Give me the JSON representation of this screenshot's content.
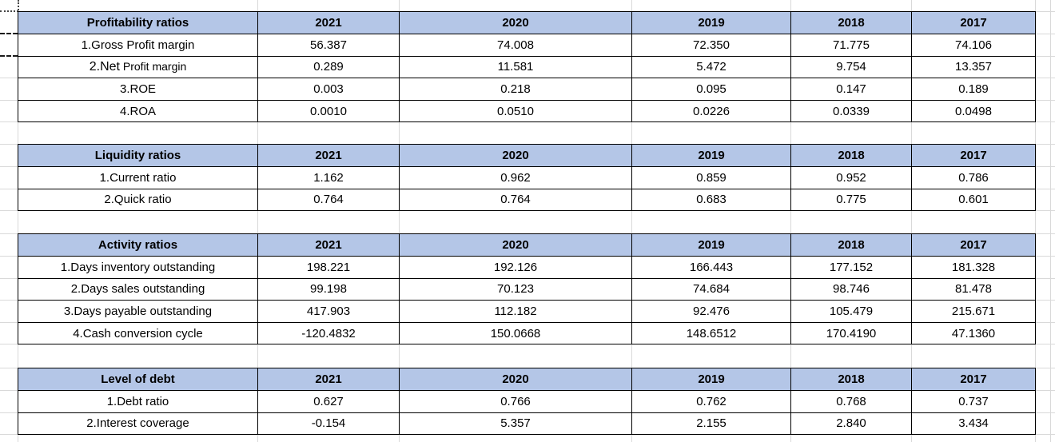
{
  "sheet": {
    "year_headers": [
      "2021",
      "2020",
      "2019",
      "2018",
      "2017"
    ],
    "tables": [
      {
        "title": "Profitability ratios",
        "rows": [
          {
            "label": "1.Gross Profit margin",
            "values": [
              "56.387",
              "74.008",
              "72.350",
              "71.775",
              "74.106"
            ]
          },
          {
            "label": "2.Net Profit margin",
            "label_parts": [
              "2.Net",
              " Profit margin"
            ],
            "values": [
              "0.289",
              "11.581",
              "5.472",
              "9.754",
              "13.357"
            ]
          },
          {
            "label": "3.ROE",
            "values": [
              "0.003",
              "0.218",
              "0.095",
              "0.147",
              "0.189"
            ]
          },
          {
            "label": "4.ROA",
            "values": [
              "0.0010",
              "0.0510",
              "0.0226",
              "0.0339",
              "0.0498"
            ]
          }
        ]
      },
      {
        "title": "Liquidity ratios",
        "rows": [
          {
            "label": "1.Current ratio",
            "values": [
              "1.162",
              "0.962",
              "0.859",
              "0.952",
              "0.786"
            ]
          },
          {
            "label": "2.Quick ratio",
            "values": [
              "0.764",
              "0.764",
              "0.683",
              "0.775",
              "0.601"
            ]
          }
        ]
      },
      {
        "title": "Activity ratios",
        "rows": [
          {
            "label": "1.Days inventory outstanding",
            "values": [
              "198.221",
              "192.126",
              "166.443",
              "177.152",
              "181.328"
            ]
          },
          {
            "label": "2.Days sales outstanding",
            "values": [
              "99.198",
              "70.123",
              "74.684",
              "98.746",
              "81.478"
            ]
          },
          {
            "label": "3.Days payable outstanding",
            "values": [
              "417.903",
              "112.182",
              "92.476",
              "105.479",
              "215.671"
            ]
          },
          {
            "label": "4.Cash conversion cycle",
            "values": [
              "-120.4832",
              "150.0668",
              "148.6512",
              "170.4190",
              "47.1360"
            ]
          }
        ]
      },
      {
        "title": "Level of debt",
        "rows": [
          {
            "label": "1.Debt ratio",
            "values": [
              "0.627",
              "0.766",
              "0.762",
              "0.768",
              "0.737"
            ]
          },
          {
            "label": "2.Interest coverage",
            "values": [
              "-0.154",
              "5.357",
              "2.155",
              "2.840",
              "3.434"
            ]
          }
        ]
      }
    ]
  },
  "colors": {
    "header_fill": "#b4c6e7",
    "table_border": "#000000",
    "gridline": "#d9d9d9",
    "text": "#000000"
  }
}
